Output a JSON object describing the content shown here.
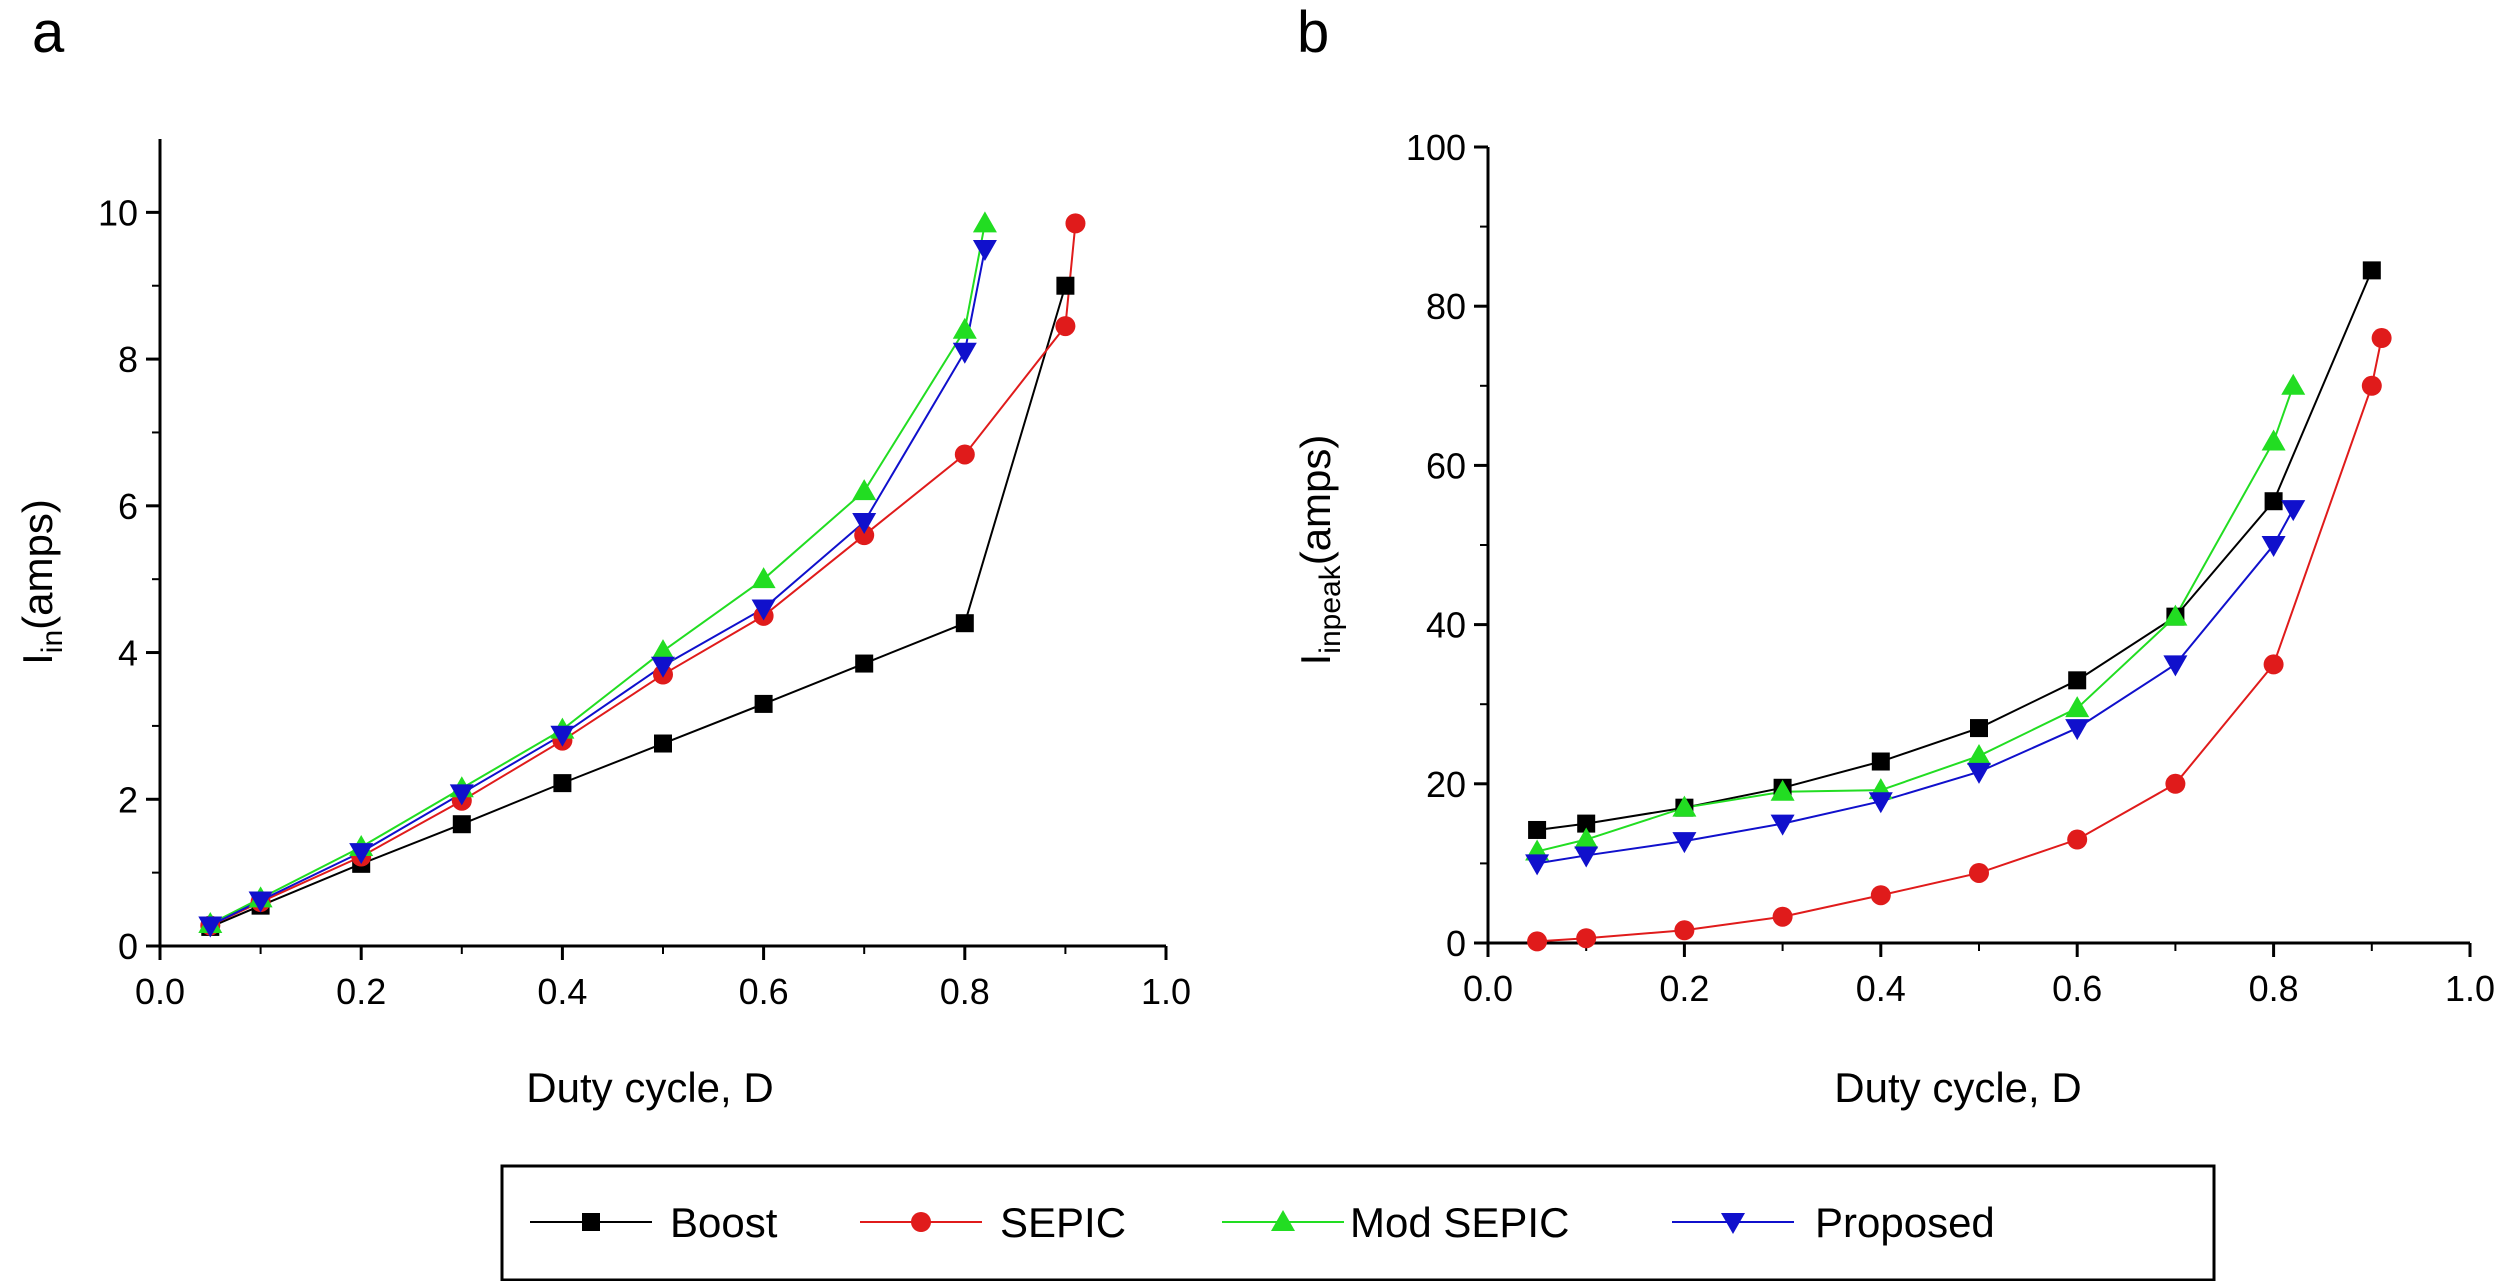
{
  "chart_data": [
    {
      "panel_label": "a",
      "type": "line",
      "title": "",
      "xlabel": "Duty cycle, D",
      "ylabel_main": "I",
      "ylabel_sub": "in",
      "ylabel_unit": "(amps)",
      "xlim": [
        0.0,
        1.0
      ],
      "ylim": [
        0,
        11
      ],
      "xticks": [
        0.0,
        0.2,
        0.4,
        0.6,
        0.8,
        1.0
      ],
      "xtick_labels": [
        "0.0",
        "0.2",
        "0.4",
        "0.6",
        "0.8",
        "1.0"
      ],
      "yticks": [
        0,
        2,
        4,
        6,
        8,
        10
      ],
      "ytick_labels": [
        "0",
        "2",
        "4",
        "6",
        "8",
        "10"
      ],
      "grid": false,
      "series": [
        {
          "name": "Boost",
          "marker": "square",
          "color": "#000000",
          "x": [
            0.05,
            0.1,
            0.2,
            0.3,
            0.4,
            0.5,
            0.6,
            0.7,
            0.8,
            0.9
          ],
          "y": [
            0.26,
            0.55,
            1.12,
            1.66,
            2.22,
            2.76,
            3.3,
            3.85,
            4.4,
            9.0
          ]
        },
        {
          "name": "SEPIC",
          "marker": "circle",
          "color": "#e01b1b",
          "x": [
            0.05,
            0.1,
            0.2,
            0.3,
            0.4,
            0.5,
            0.6,
            0.7,
            0.8,
            0.9,
            0.91
          ],
          "y": [
            0.28,
            0.6,
            1.22,
            1.98,
            2.8,
            3.7,
            4.5,
            5.6,
            6.7,
            8.45,
            9.85
          ]
        },
        {
          "name": "Mod SEPIC",
          "marker": "triangle-up",
          "color": "#22dd22",
          "x": [
            0.05,
            0.1,
            0.2,
            0.3,
            0.4,
            0.5,
            0.6,
            0.7,
            0.8,
            0.82
          ],
          "y": [
            0.3,
            0.65,
            1.35,
            2.15,
            2.95,
            4.02,
            5.0,
            6.2,
            8.4,
            9.85
          ]
        },
        {
          "name": "Proposed",
          "marker": "triangle-down",
          "color": "#1010cc",
          "x": [
            0.05,
            0.1,
            0.2,
            0.3,
            0.4,
            0.5,
            0.6,
            0.7,
            0.8,
            0.82
          ],
          "y": [
            0.28,
            0.62,
            1.28,
            2.08,
            2.88,
            3.82,
            4.6,
            5.78,
            8.1,
            9.5
          ]
        }
      ]
    },
    {
      "panel_label": "b",
      "type": "line",
      "title": "",
      "xlabel": "Duty cycle, D",
      "ylabel_main": "I",
      "ylabel_sub": "inpeak",
      "ylabel_unit": "(amps)",
      "xlim": [
        0.0,
        1.0
      ],
      "ylim": [
        0,
        100
      ],
      "xticks": [
        0.0,
        0.2,
        0.4,
        0.6,
        0.8,
        1.0
      ],
      "xtick_labels": [
        "0.0",
        "0.2",
        "0.4",
        "0.6",
        "0.8",
        "1.0"
      ],
      "yticks": [
        0,
        20,
        40,
        60,
        80,
        100
      ],
      "ytick_labels": [
        "0",
        "20",
        "40",
        "60",
        "80",
        "100"
      ],
      "grid": false,
      "series": [
        {
          "name": "Boost",
          "marker": "square",
          "color": "#000000",
          "x": [
            0.05,
            0.1,
            0.2,
            0.3,
            0.4,
            0.5,
            0.6,
            0.7,
            0.8,
            0.9
          ],
          "y": [
            14.2,
            15.0,
            17.0,
            19.5,
            22.8,
            27.0,
            33.0,
            41.0,
            55.5,
            84.5
          ]
        },
        {
          "name": "SEPIC",
          "marker": "circle",
          "color": "#e01b1b",
          "x": [
            0.05,
            0.1,
            0.2,
            0.3,
            0.4,
            0.5,
            0.6,
            0.7,
            0.8,
            0.9,
            0.91
          ],
          "y": [
            0.2,
            0.6,
            1.6,
            3.3,
            6.0,
            8.8,
            13.0,
            20.0,
            35.0,
            70.0,
            76.0
          ]
        },
        {
          "name": "Mod SEPIC",
          "marker": "triangle-up",
          "color": "#22dd22",
          "x": [
            0.05,
            0.1,
            0.2,
            0.3,
            0.4,
            0.5,
            0.6,
            0.7,
            0.8,
            0.82
          ],
          "y": [
            11.5,
            13.0,
            17.0,
            19.0,
            19.2,
            23.5,
            29.5,
            41.0,
            63.0,
            70.0
          ]
        },
        {
          "name": "Proposed",
          "marker": "triangle-down",
          "color": "#1010cc",
          "x": [
            0.05,
            0.1,
            0.2,
            0.3,
            0.4,
            0.5,
            0.6,
            0.7,
            0.8,
            0.82
          ],
          "y": [
            10.0,
            11.0,
            12.8,
            15.0,
            17.8,
            21.5,
            27.0,
            35.0,
            50.0,
            54.5
          ]
        }
      ]
    }
  ],
  "legend": {
    "placement": "bottom-center",
    "entries": [
      {
        "label": "Boost",
        "marker": "square",
        "color": "#000000"
      },
      {
        "label": "SEPIC",
        "marker": "circle",
        "color": "#e01b1b"
      },
      {
        "label": "Mod SEPIC",
        "marker": "triangle-up",
        "color": "#22dd22"
      },
      {
        "label": "Proposed",
        "marker": "triangle-down",
        "color": "#1010cc"
      }
    ]
  }
}
